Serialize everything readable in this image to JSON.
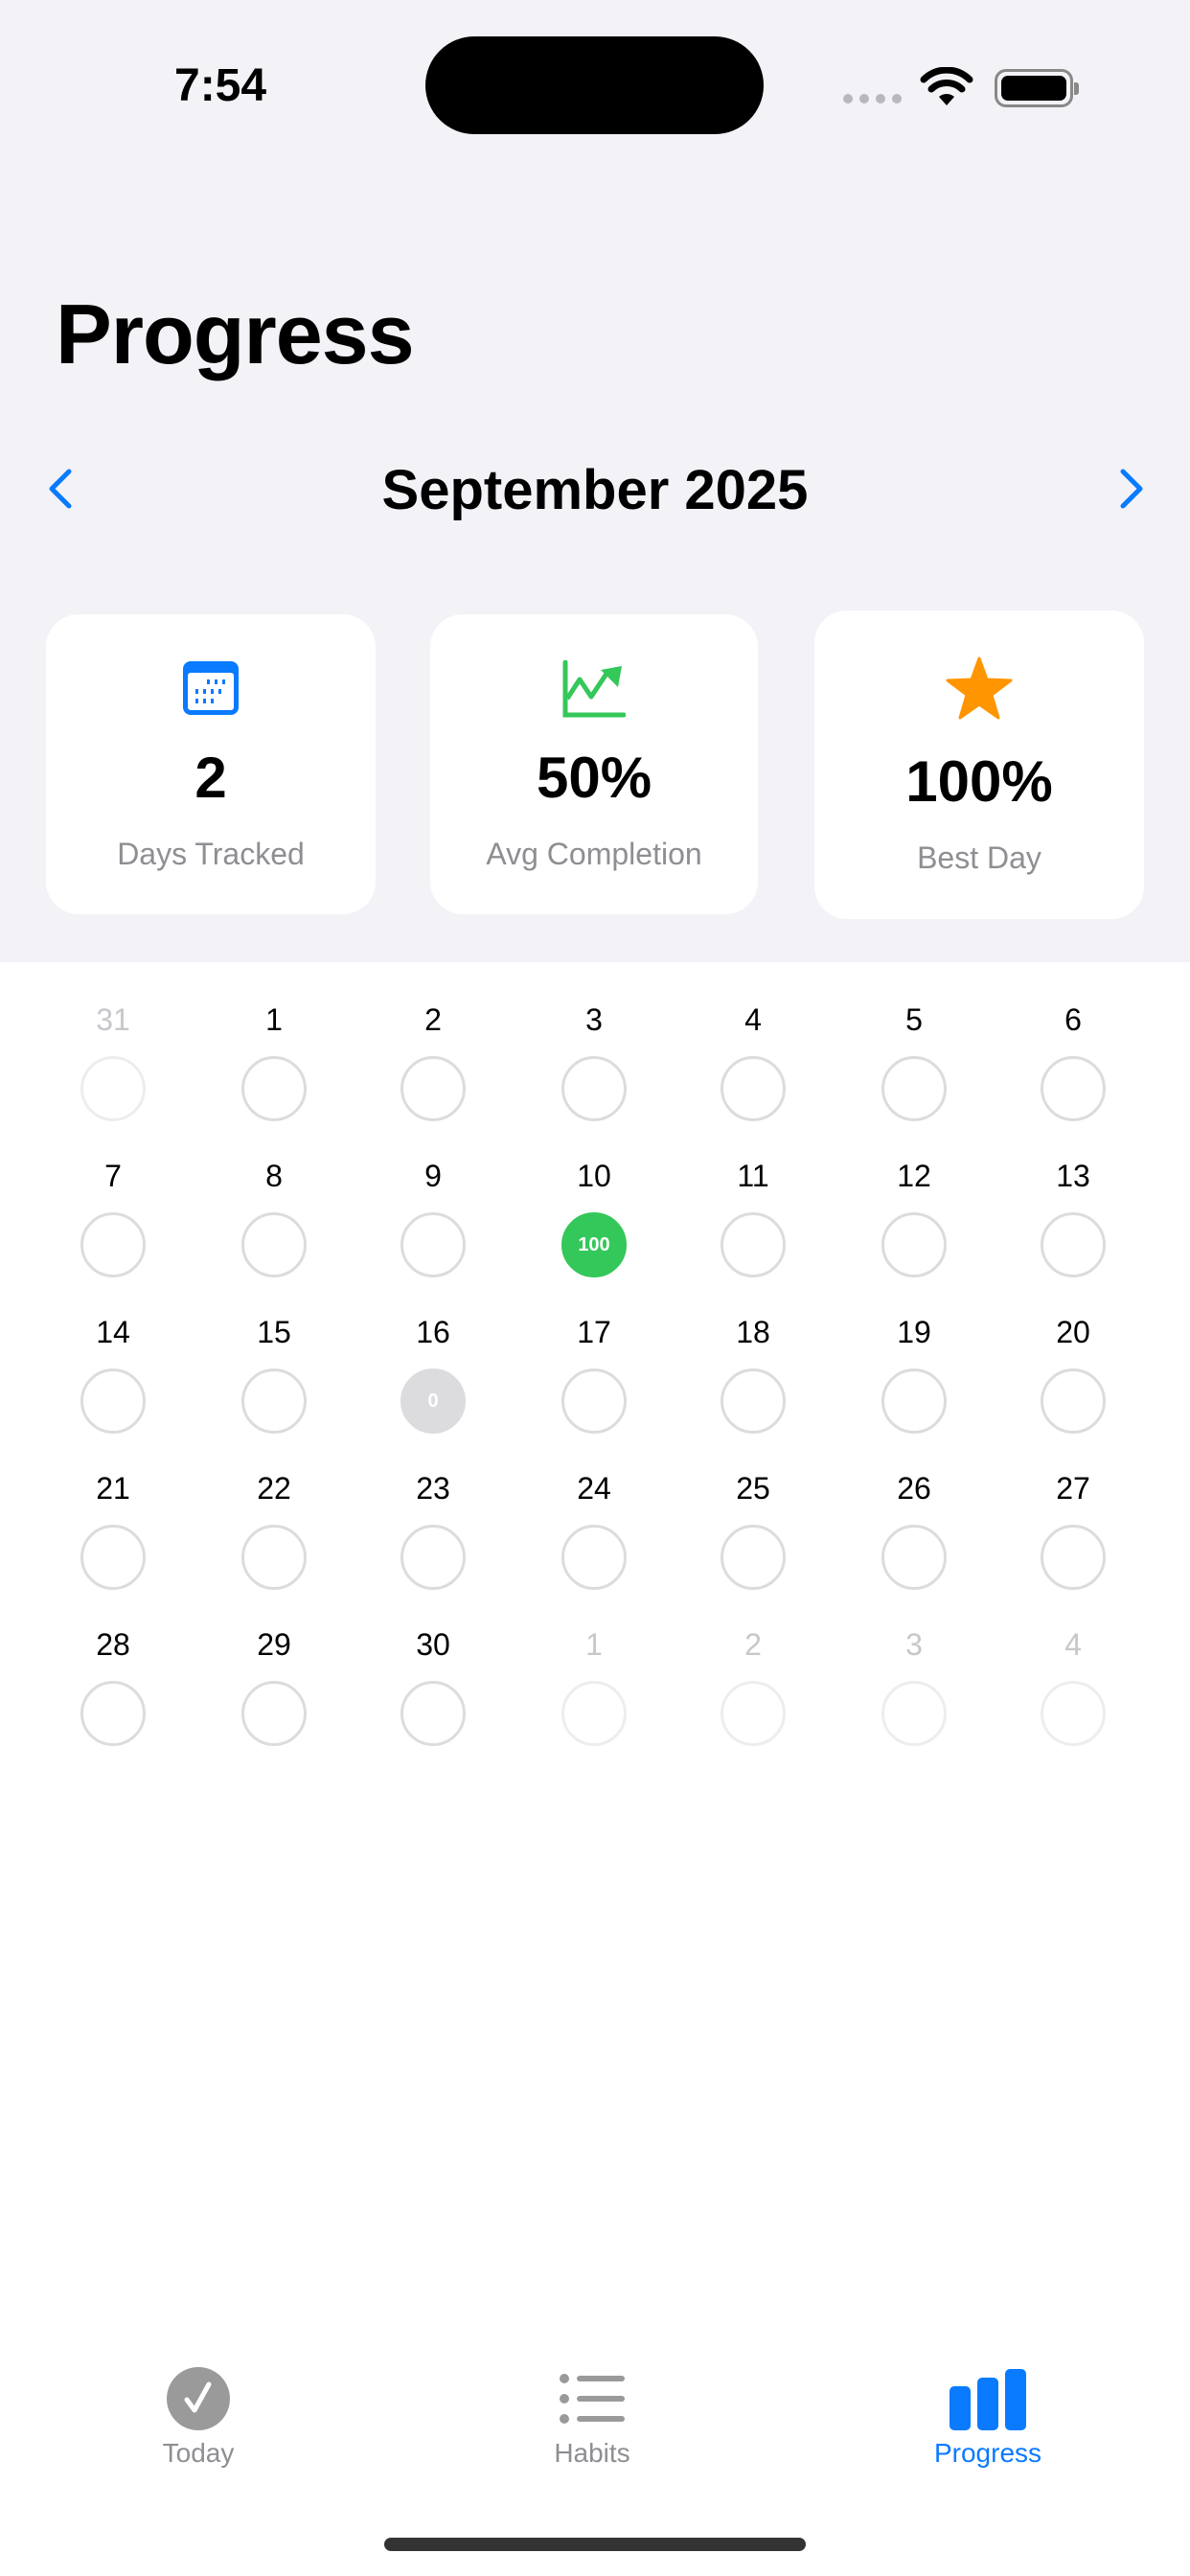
{
  "status": {
    "time": "7:54"
  },
  "header": {
    "title": "Progress"
  },
  "month_nav": {
    "label": "September 2025",
    "prev_icon": "chevron-left-icon",
    "next_icon": "chevron-right-icon"
  },
  "stats": [
    {
      "icon": "calendar-icon",
      "value": "2",
      "label": "Days Tracked",
      "color": "#0A7AFF"
    },
    {
      "icon": "chart-line-uptrend-icon",
      "value": "50%",
      "label": "Avg Completion",
      "color": "#34C759"
    },
    {
      "icon": "star-icon",
      "value": "100%",
      "label": "Best Day",
      "color": "#FF9500"
    }
  ],
  "calendar": {
    "days": [
      {
        "day": "31",
        "out": true
      },
      {
        "day": "1"
      },
      {
        "day": "2"
      },
      {
        "day": "3"
      },
      {
        "day": "4"
      },
      {
        "day": "5"
      },
      {
        "day": "6"
      },
      {
        "day": "7"
      },
      {
        "day": "8"
      },
      {
        "day": "9"
      },
      {
        "day": "10",
        "score": "100",
        "color": "#34C759"
      },
      {
        "day": "11"
      },
      {
        "day": "12"
      },
      {
        "day": "13"
      },
      {
        "day": "14"
      },
      {
        "day": "15"
      },
      {
        "day": "16",
        "score": "0",
        "color": "#DCDCDF"
      },
      {
        "day": "17"
      },
      {
        "day": "18"
      },
      {
        "day": "19"
      },
      {
        "day": "20"
      },
      {
        "day": "21"
      },
      {
        "day": "22"
      },
      {
        "day": "23"
      },
      {
        "day": "24"
      },
      {
        "day": "25"
      },
      {
        "day": "26"
      },
      {
        "day": "27"
      },
      {
        "day": "28"
      },
      {
        "day": "29"
      },
      {
        "day": "30"
      },
      {
        "day": "1",
        "out": true
      },
      {
        "day": "2",
        "out": true
      },
      {
        "day": "3",
        "out": true
      },
      {
        "day": "4",
        "out": true
      }
    ]
  },
  "tabs": [
    {
      "label": "Today",
      "icon": "checkmark-circle-icon",
      "active": false
    },
    {
      "label": "Habits",
      "icon": "list-bullet-icon",
      "active": false
    },
    {
      "label": "Progress",
      "icon": "chart-bar-icon",
      "active": true
    }
  ],
  "colors": {
    "accent": "#0A7AFF",
    "background": "#F2F2F7",
    "inactive": "#8E8E93"
  }
}
